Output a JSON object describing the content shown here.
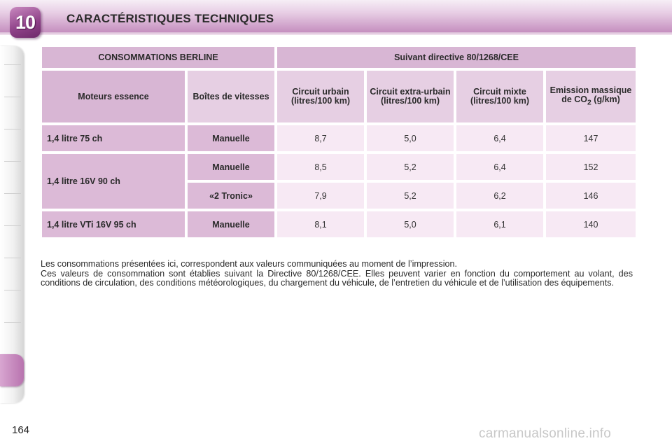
{
  "header": {
    "chapter_number": "10",
    "title": "CARACTÉRISTIQUES TECHNIQUES"
  },
  "table": {
    "top_headers": {
      "left": "CONSOMMATIONS BERLINE",
      "right": "Suivant directive 80/1268/CEE"
    },
    "columns": {
      "engine": "Moteurs essence",
      "gearbox": "Boîtes de vitesses",
      "urban": "Circuit urbain (litres/100 km)",
      "extra_urban": "Circuit extra-urbain (litres/100 km)",
      "combined": "Circuit mixte (litres/100 km)",
      "emission_main": "Emission massique de CO",
      "emission_sub": "2",
      "emission_unit": " (g/km)"
    },
    "rows": [
      {
        "engine": "1,4 litre 75 ch",
        "gearbox": "Manuelle",
        "urban": "8,7",
        "extra_urban": "5,0",
        "combined": "6,4",
        "co2": "147"
      },
      {
        "engine": "1,4 litre 16V 90 ch",
        "gearbox": "Manuelle",
        "urban": "8,5",
        "extra_urban": "5,2",
        "combined": "6,4",
        "co2": "152"
      },
      {
        "engine": "1,4 litre 16V 90 ch",
        "gearbox": "«2 Tronic»",
        "urban": "7,9",
        "extra_urban": "5,2",
        "combined": "6,2",
        "co2": "146"
      },
      {
        "engine": "1,4 litre VTi 16V 95 ch",
        "gearbox": "Manuelle",
        "urban": "8,1",
        "extra_urban": "5,0",
        "combined": "6,1",
        "co2": "140"
      }
    ]
  },
  "note": {
    "line1": "Les consommations présentées ici, correspondent aux valeurs communiquées au moment de l’impression.",
    "line2": "Ces valeurs de consommation sont établies suivant la Directive 80/1268/CEE. Elles peuvent varier en fonction du comportement au volant, des conditions de circulation, des conditions météorologiques, du chargement du véhicule, de l’entretien du véhicule et de l’utilisation des équipements."
  },
  "page_number": "164",
  "watermark": "carmanualsonline.info",
  "colors": {
    "accent": "#8c3f86",
    "header_cell": "#d8b6d4",
    "value_cell": "#f7e9f4"
  }
}
